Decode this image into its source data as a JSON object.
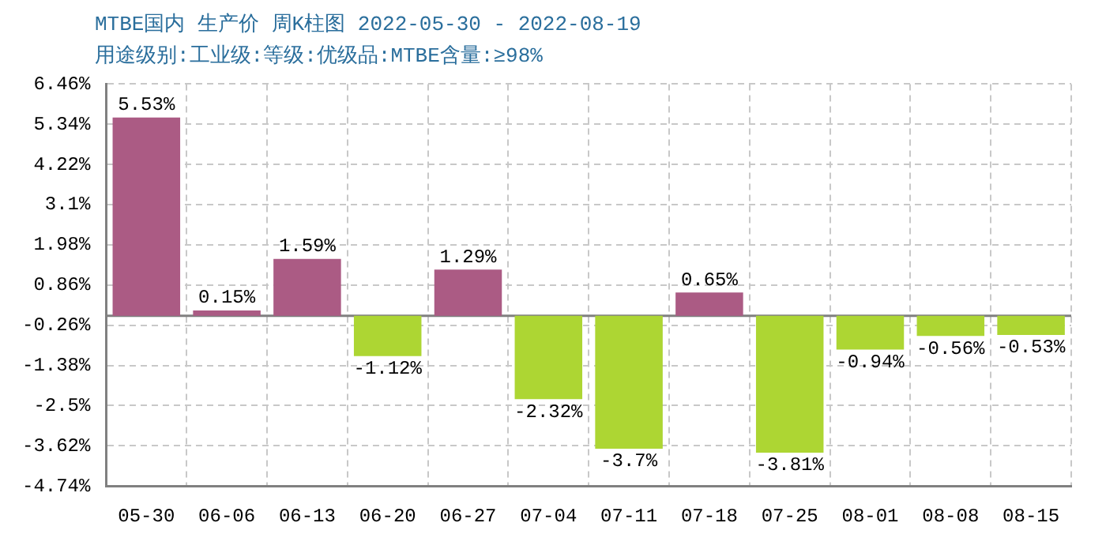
{
  "chart_data": {
    "type": "bar",
    "title": "MTBE国内 生产价 周K柱图 2022-05-30 - 2022-08-19",
    "subtitle": "用途级别:工业级:等级:优级品:MTBE含量:≥98%",
    "categories": [
      "05-30",
      "06-06",
      "06-13",
      "06-20",
      "06-27",
      "07-04",
      "07-11",
      "07-18",
      "07-25",
      "08-01",
      "08-08",
      "08-15"
    ],
    "values": [
      5.53,
      0.15,
      1.59,
      -1.12,
      1.29,
      -2.32,
      -3.7,
      0.65,
      -3.81,
      -0.94,
      -0.56,
      -0.53
    ],
    "colors": [
      "#ab5b84",
      "#ab5b84",
      "#ab5b84",
      "#add633",
      "#ab5b84",
      "#add633",
      "#add633",
      "#ab5b84",
      "#add633",
      "#add633",
      "#add633",
      "#add633"
    ],
    "value_labels": [
      "5.53%",
      "0.15%",
      "1.59%",
      "-1.12%",
      "1.29%",
      "-2.32%",
      "-3.7%",
      "0.65%",
      "-3.81%",
      "-0.94%",
      "-0.56%",
      "-0.53%"
    ],
    "ylim": [
      -4.74,
      6.46
    ],
    "yticks": [
      {
        "value": -4.74,
        "label": "-4.74%"
      },
      {
        "value": -3.62,
        "label": "-3.62%"
      },
      {
        "value": -2.5,
        "label": "-2.5%"
      },
      {
        "value": -1.38,
        "label": "-1.38%"
      },
      {
        "value": -0.26,
        "label": "-0.26%"
      },
      {
        "value": 0.86,
        "label": "0.86%"
      },
      {
        "value": 1.98,
        "label": "1.98%"
      },
      {
        "value": 3.1,
        "label": "3.1%"
      },
      {
        "value": 4.22,
        "label": "4.22%"
      },
      {
        "value": 5.34,
        "label": "5.34%"
      },
      {
        "value": 6.46,
        "label": "6.46%"
      }
    ],
    "ref_lines": [
      {
        "axis": "y",
        "value": 0,
        "color": "#808080"
      }
    ],
    "grid": true,
    "legend": false
  }
}
